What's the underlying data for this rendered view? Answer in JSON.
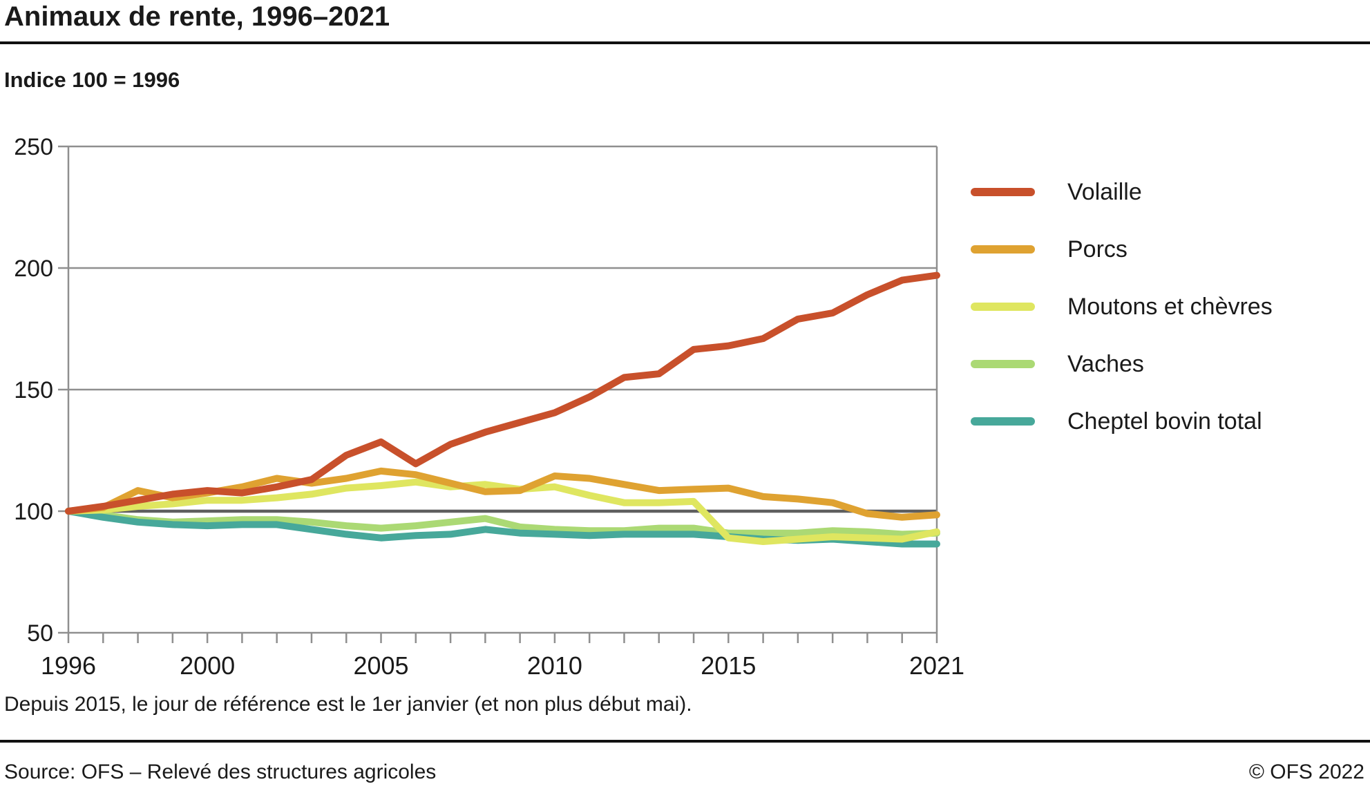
{
  "header": {
    "title": "Animaux de rente, 1996–2021",
    "subtitle": "Indice 100 = 1996"
  },
  "footnote": "Depuis 2015, le jour de référence est le 1er janvier (et non plus début mai).",
  "source": {
    "left": "Source: OFS – Relevé des structures agricoles",
    "right": "© OFS 2022"
  },
  "style_colors": {
    "grid": "#8f8f8f",
    "baseline_100": "#5f5f5f",
    "text": "#1a1a1a",
    "rule": "#111111"
  },
  "chart_data": {
    "type": "line",
    "title": "Animaux de rente, 1996–2021",
    "subtitle": "Indice 100 = 1996",
    "xlabel": "",
    "ylabel": "Indice (100 = 1996)",
    "x": [
      1996,
      1997,
      1998,
      1999,
      2000,
      2001,
      2002,
      2003,
      2004,
      2005,
      2006,
      2007,
      2008,
      2009,
      2010,
      2011,
      2012,
      2013,
      2014,
      2015,
      2016,
      2017,
      2018,
      2019,
      2020,
      2021
    ],
    "xticks": [
      1996,
      2000,
      2005,
      2010,
      2015,
      2021
    ],
    "ylim": [
      50,
      250
    ],
    "yticks": [
      50,
      100,
      150,
      200,
      250
    ],
    "baseline": 100,
    "grid": "horizontal",
    "legend_position": "right",
    "series": [
      {
        "name": "Volaille",
        "color": "#c8502b",
        "values": [
          100,
          102,
          104.5,
          107,
          108.5,
          107.5,
          110,
          113,
          123,
          128.5,
          119.5,
          127.5,
          132.5,
          136.5,
          140.5,
          147,
          155,
          156.5,
          166.5,
          168,
          171,
          179,
          181.5,
          189,
          195,
          197
        ]
      },
      {
        "name": "Porcs",
        "color": "#dfa231",
        "values": [
          100,
          101.5,
          108.5,
          105.5,
          107.5,
          110,
          113.5,
          111.5,
          113.5,
          116.5,
          115,
          111.5,
          108,
          108.5,
          114.5,
          113.5,
          111,
          108.5,
          109,
          109.5,
          106,
          105,
          103.5,
          99,
          97.5,
          98.5
        ]
      },
      {
        "name": "Moutons et chèvres",
        "color": "#dfe660",
        "values": [
          100,
          100.5,
          102,
          103,
          104.5,
          104.5,
          105.5,
          107,
          109.5,
          110.5,
          112,
          110,
          111,
          109,
          110,
          106.5,
          103.5,
          103.5,
          104,
          89,
          87.5,
          88.5,
          89.5,
          89,
          88.5,
          91.5
        ]
      },
      {
        "name": "Vaches",
        "color": "#abd974",
        "values": [
          100,
          98.5,
          96.5,
          95.5,
          96,
          96.5,
          96.5,
          95.5,
          94,
          93,
          94,
          95.5,
          97,
          93.5,
          92.5,
          92,
          92,
          93,
          93,
          91,
          91,
          91,
          92,
          91.5,
          90.5,
          91
        ]
      },
      {
        "name": "Cheptel bovin total",
        "color": "#47a89a",
        "values": [
          100,
          97.5,
          95.5,
          94.5,
          94,
          94.5,
          94.5,
          92.5,
          90.5,
          89,
          90,
          90.5,
          92.5,
          91,
          90.5,
          90,
          90.5,
          90.5,
          90.5,
          89.5,
          88.5,
          88,
          88.5,
          87.5,
          86.5,
          86.5
        ]
      }
    ]
  }
}
